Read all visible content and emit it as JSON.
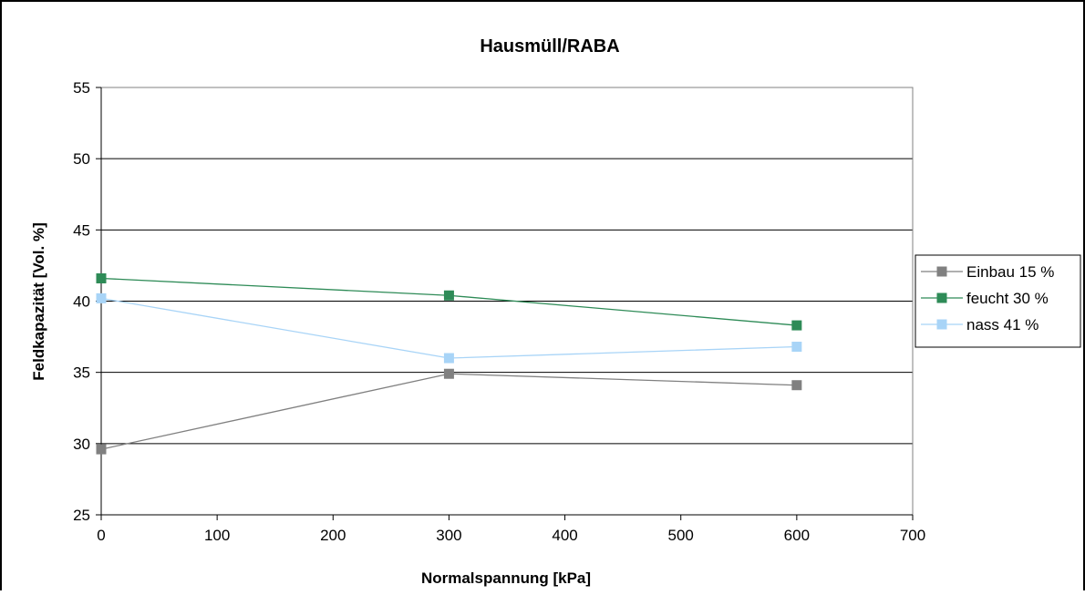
{
  "chart_data": {
    "type": "line",
    "title": "Hausmüll/RABA",
    "xlabel": "Normalspannung [kPa]",
    "ylabel": "Feldkapazität [Vol. %]",
    "xlim": [
      0,
      700
    ],
    "ylim": [
      25,
      55
    ],
    "x_ticks": [
      0,
      100,
      200,
      300,
      400,
      500,
      600,
      700
    ],
    "y_ticks": [
      25,
      30,
      35,
      40,
      45,
      50,
      55
    ],
    "grid": "horizontal",
    "legend_position": "right",
    "series": [
      {
        "name": "Einbau 15 %",
        "color": "#808080",
        "marker": "square",
        "x": [
          0,
          300,
          600
        ],
        "y": [
          29.6,
          34.9,
          34.1
        ]
      },
      {
        "name": "feucht 30 %",
        "color": "#2e8b57",
        "marker": "square",
        "x": [
          0,
          300,
          600
        ],
        "y": [
          41.6,
          40.4,
          38.3
        ]
      },
      {
        "name": "nass 41 %",
        "color": "#a8d4f7",
        "marker": "square",
        "x": [
          0,
          300,
          600
        ],
        "y": [
          40.2,
          36.0,
          36.8
        ]
      }
    ]
  }
}
